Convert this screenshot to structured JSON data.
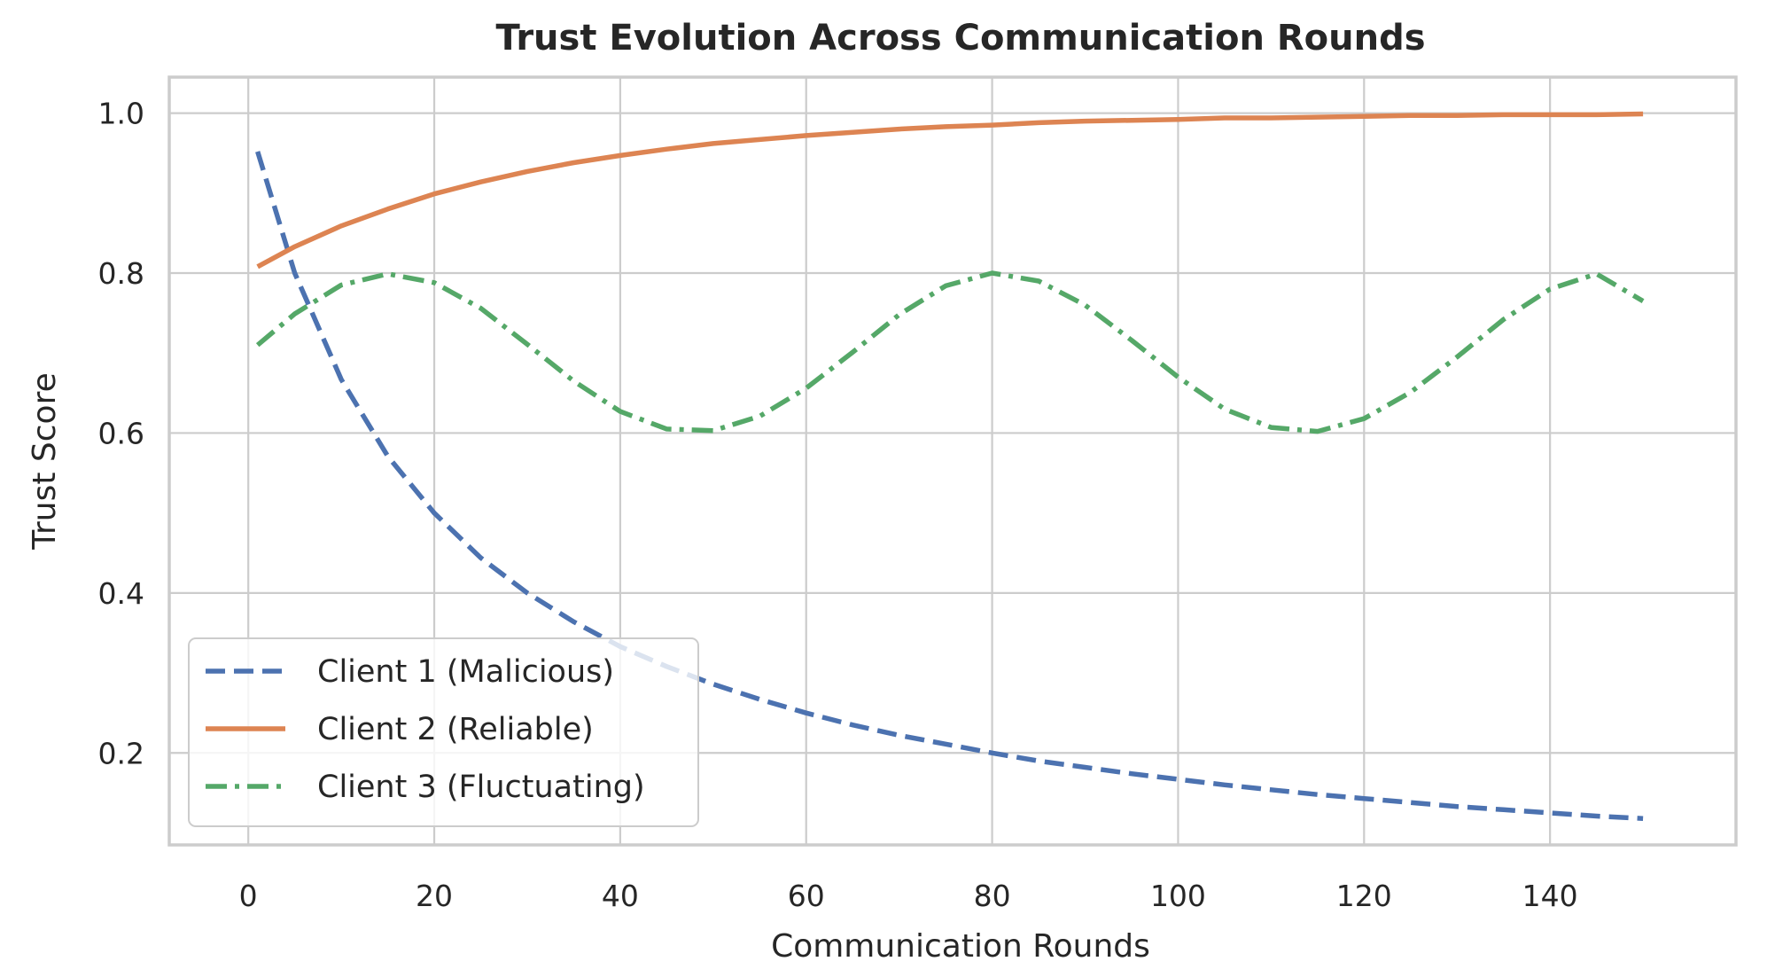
{
  "chart_data": {
    "type": "line",
    "title": "Trust Evolution Across Communication Rounds",
    "xlabel": "Communication Rounds",
    "ylabel": "Trust Score",
    "xlim": [
      -8.5,
      160
    ],
    "ylim": [
      0.085,
      1.045
    ],
    "xticks": [
      0,
      20,
      40,
      60,
      80,
      100,
      120,
      140
    ],
    "xtick_labels": [
      "0",
      "20",
      "40",
      "60",
      "80",
      "100",
      "120",
      "140"
    ],
    "yticks": [
      0.2,
      0.4,
      0.6,
      0.8,
      1.0
    ],
    "ytick_labels": [
      "0.2",
      "0.4",
      "0.6",
      "0.8",
      "1.0"
    ],
    "grid": true,
    "legend_position": "lower-left",
    "x": [
      1,
      5,
      10,
      15,
      20,
      25,
      30,
      35,
      40,
      45,
      50,
      55,
      60,
      65,
      70,
      75,
      80,
      85,
      90,
      95,
      100,
      105,
      110,
      115,
      120,
      125,
      130,
      135,
      140,
      145,
      150
    ],
    "series": [
      {
        "name": "Client 1 (Malicious)",
        "color": "#4c72b0",
        "style": "dashed",
        "values": [
          0.952,
          0.8,
          0.667,
          0.571,
          0.5,
          0.444,
          0.4,
          0.364,
          0.333,
          0.308,
          0.286,
          0.267,
          0.25,
          0.235,
          0.222,
          0.211,
          0.2,
          0.19,
          0.182,
          0.174,
          0.167,
          0.16,
          0.154,
          0.148,
          0.143,
          0.138,
          0.133,
          0.129,
          0.125,
          0.121,
          0.118
        ]
      },
      {
        "name": "Client 2 (Reliable)",
        "color": "#dd8452",
        "style": "solid",
        "values": [
          0.808,
          0.833,
          0.859,
          0.88,
          0.899,
          0.914,
          0.927,
          0.938,
          0.947,
          0.955,
          0.962,
          0.967,
          0.972,
          0.976,
          0.98,
          0.983,
          0.985,
          0.988,
          0.99,
          0.991,
          0.992,
          0.994,
          0.994,
          0.995,
          0.996,
          0.997,
          0.997,
          0.998,
          0.998,
          0.998,
          0.999
        ]
      },
      {
        "name": "Client 3 (Fluctuating)",
        "color": "#55a868",
        "style": "dashdot",
        "values": [
          0.71,
          0.749,
          0.785,
          0.799,
          0.788,
          0.756,
          0.711,
          0.665,
          0.627,
          0.605,
          0.603,
          0.621,
          0.656,
          0.701,
          0.748,
          0.784,
          0.8,
          0.79,
          0.76,
          0.716,
          0.67,
          0.63,
          0.607,
          0.602,
          0.618,
          0.651,
          0.695,
          0.742,
          0.78,
          0.799,
          0.765
        ]
      }
    ]
  }
}
